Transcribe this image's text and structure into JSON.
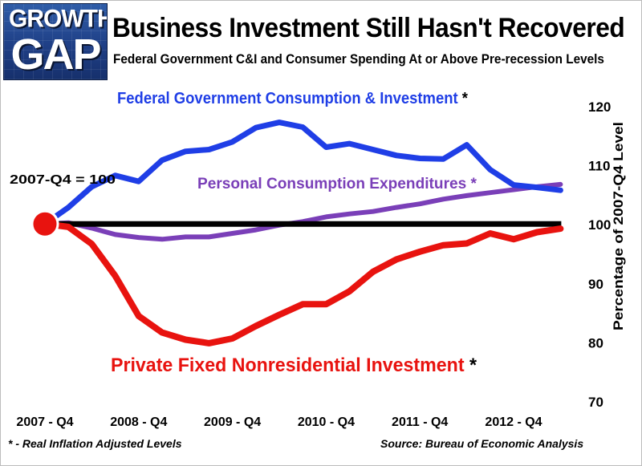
{
  "header": {
    "logo_line1": "GROWTH",
    "logo_line2": "GAP",
    "title": "Business Investment Still Hasn't Recovered",
    "subtitle": "Federal Government C&I and Consumer Spending At or Above Pre-recession Levels"
  },
  "footer": {
    "footnote": "* - Real Inflation Adjusted Levels",
    "source": "Source: Bureau of Economic Analysis"
  },
  "colors": {
    "federal": "#1f3ee6",
    "pce": "#7a3fb8",
    "private": "#e8130f",
    "baseline": "#000000",
    "marker": "#e8130f"
  },
  "chart_data": {
    "type": "line",
    "title": "Business Investment Still Hasn't Recovered",
    "xlabel": "",
    "ylabel": "Percentage of 2007-Q4 Level",
    "ylim": [
      70,
      120
    ],
    "yticks": [
      70,
      80,
      90,
      100,
      110,
      120
    ],
    "x_tick_labels": [
      "2007 - Q4",
      "2008 - Q4",
      "2009 - Q4",
      "2010 - Q4",
      "2011 - Q4",
      "2012 - Q4"
    ],
    "x_tick_positions": [
      0,
      4,
      8,
      12,
      16,
      20
    ],
    "xlim": [
      0,
      23
    ],
    "baseline_label": "2007-Q4 = 100",
    "baseline_value": 100,
    "grid": false,
    "series": [
      {
        "name": "Federal Government Consumption & Investment",
        "suffix": "*",
        "color": "#1f3ee6",
        "values": [
          100,
          102.8,
          106.3,
          108.2,
          107.2,
          110.8,
          112.3,
          112.6,
          113.9,
          116.3,
          117.2,
          116.4,
          113.0,
          113.6,
          112.6,
          111.6,
          111.1,
          111.0,
          113.4,
          109.2,
          106.6,
          106.2,
          105.7
        ]
      },
      {
        "name": "Personal Consumption Expenditures",
        "suffix": "*",
        "color": "#7a3fb8",
        "values": [
          100,
          100.2,
          99.3,
          98.2,
          97.7,
          97.4,
          97.8,
          97.8,
          98.4,
          99.0,
          99.8,
          100.4,
          101.2,
          101.7,
          102.1,
          102.8,
          103.4,
          104.2,
          104.8,
          105.3,
          105.8,
          106.3,
          106.7
        ]
      },
      {
        "name": "Private Fixed Nonresidential Investment",
        "suffix": "*",
        "color": "#e8130f",
        "values": [
          100,
          99.5,
          96.6,
          91.2,
          84.4,
          81.6,
          80.4,
          79.8,
          80.6,
          82.7,
          84.6,
          86.4,
          86.4,
          88.6,
          91.9,
          94.0,
          95.3,
          96.4,
          96.7,
          98.4,
          97.4,
          98.6,
          99.2
        ]
      }
    ]
  }
}
